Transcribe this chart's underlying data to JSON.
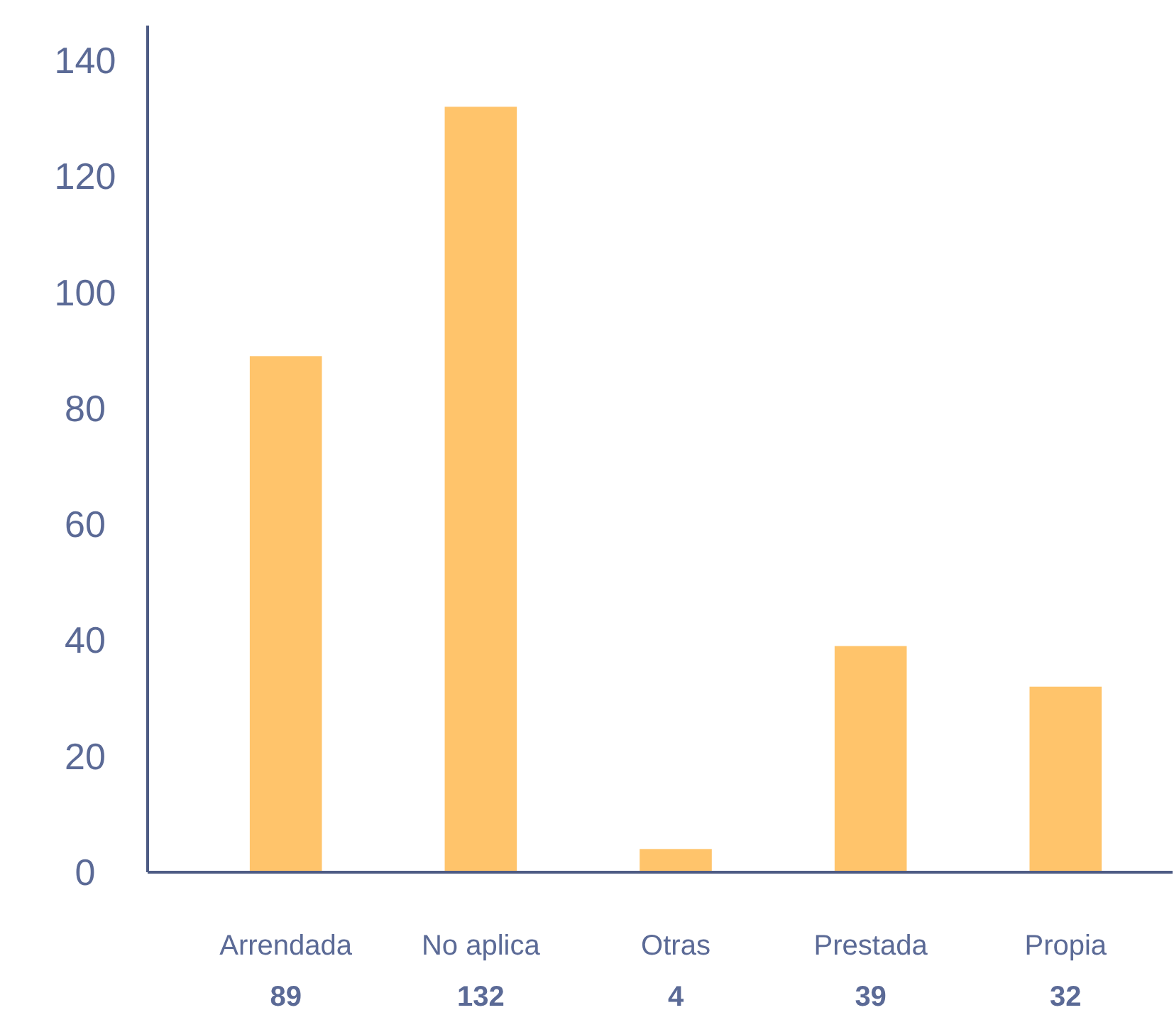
{
  "chart_data": {
    "type": "bar",
    "categories": [
      "Arrendada",
      "No aplica",
      "Otras",
      "Prestada",
      "Propia"
    ],
    "values": [
      89,
      132,
      4,
      39,
      32
    ],
    "color": "#ffc46b",
    "ylim": [
      0,
      146
    ],
    "yticks": [
      0,
      20,
      40,
      60,
      80,
      100,
      120,
      140
    ],
    "grid": false,
    "data_labels": true
  }
}
